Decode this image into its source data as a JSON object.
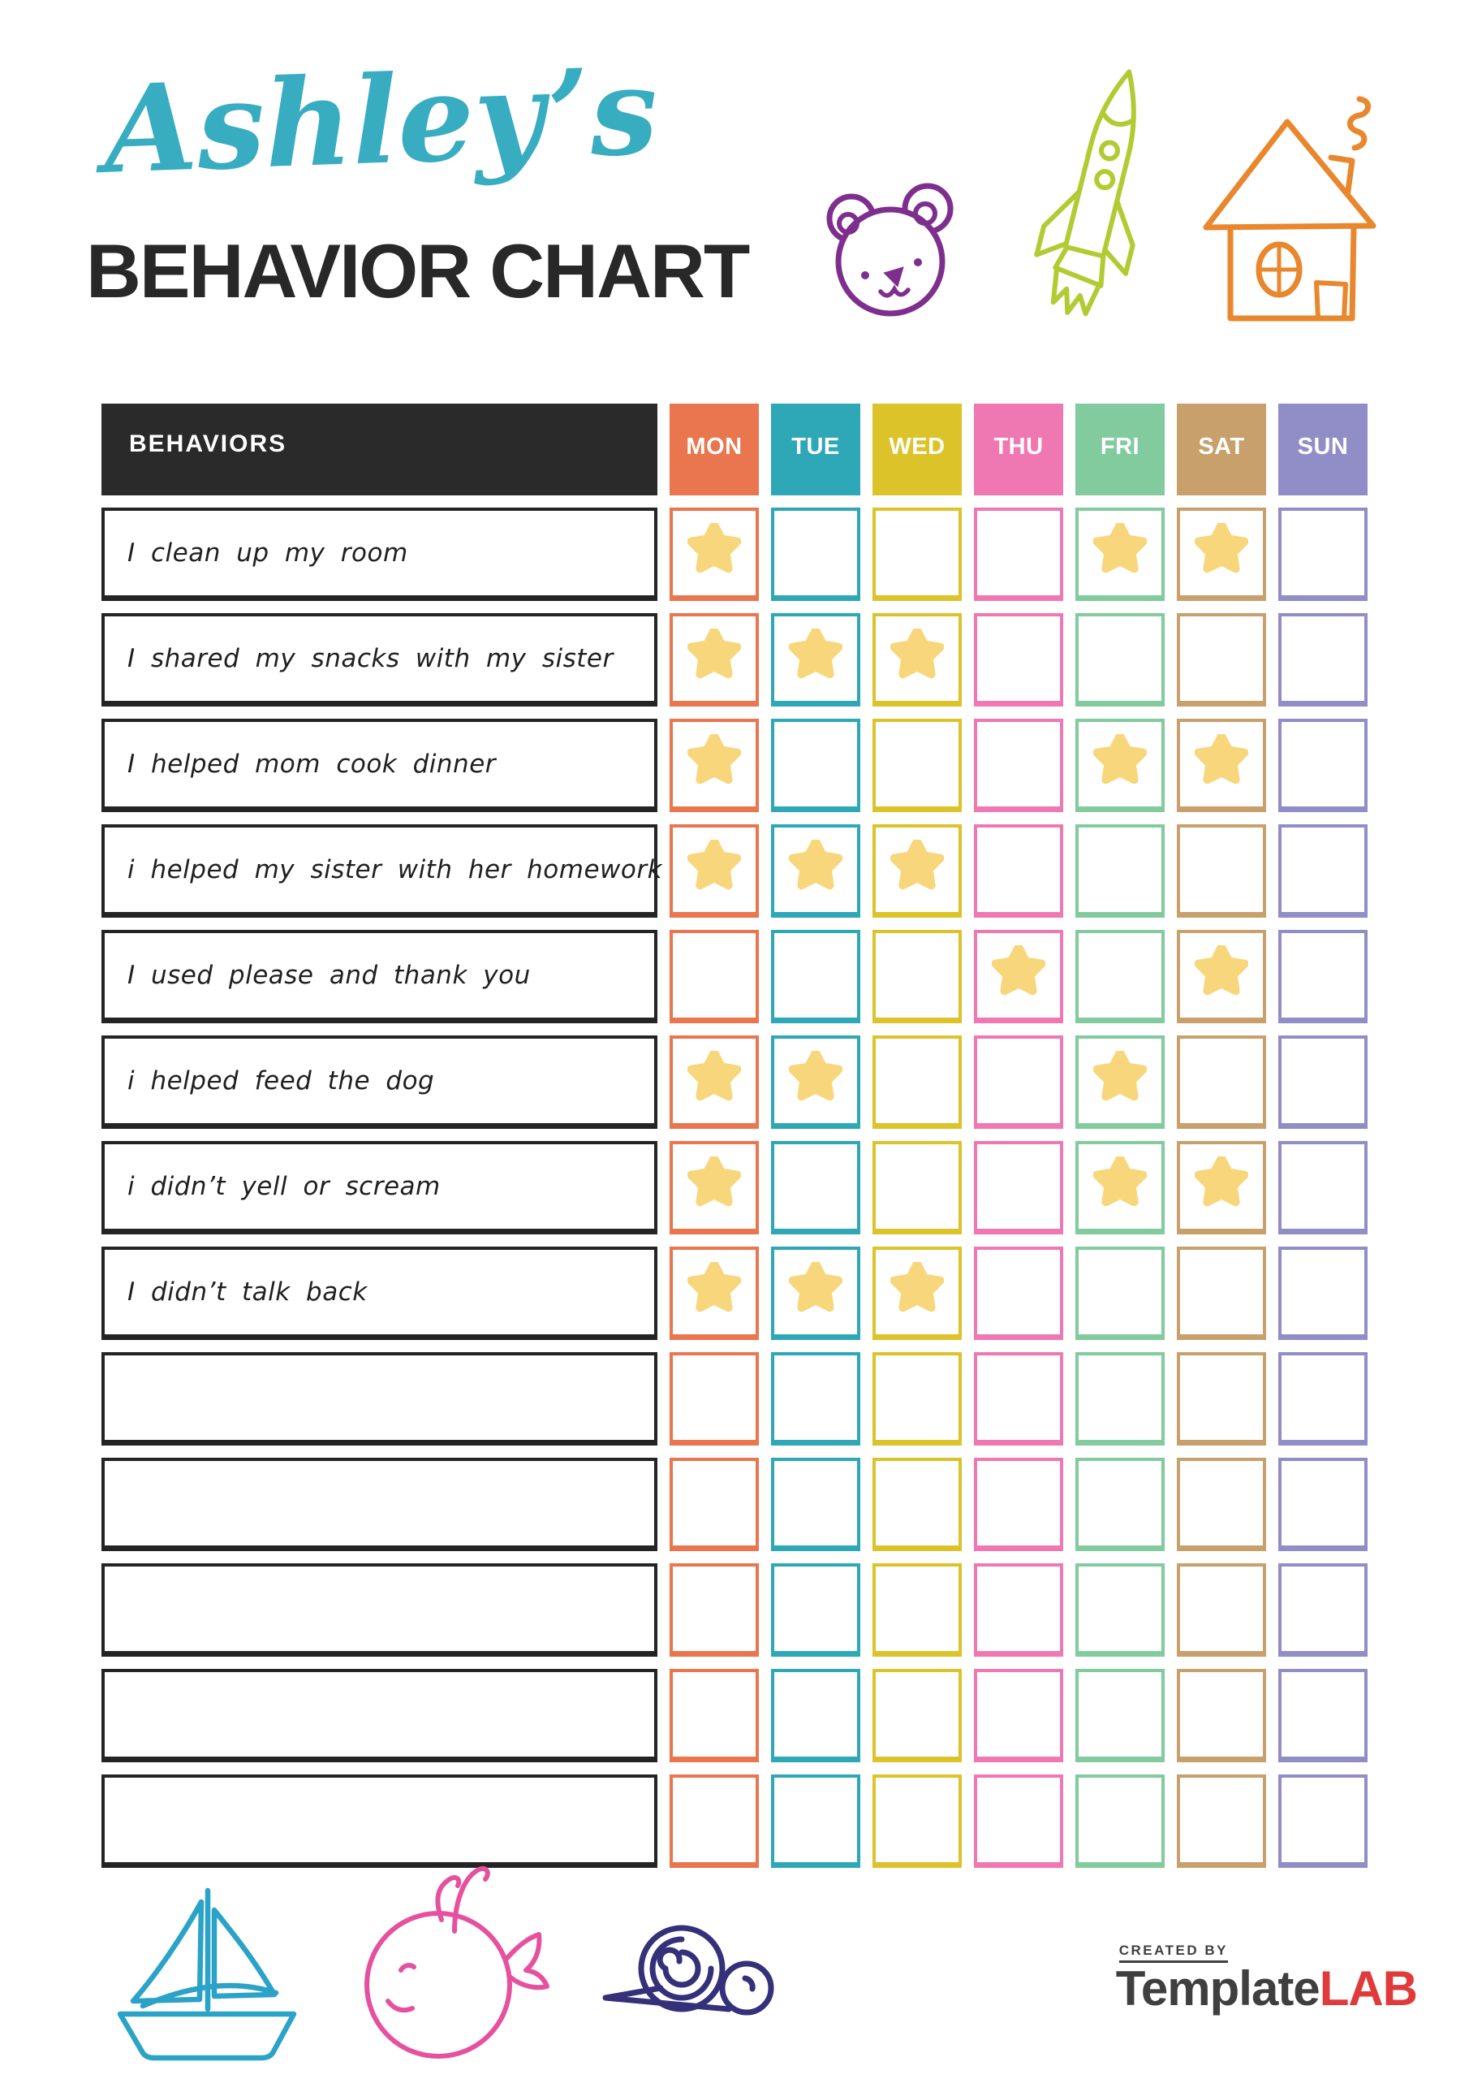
{
  "page": {
    "title_script": "Ashley’s",
    "title_main": "BEHAVIOR CHART",
    "title_color": "#38adc1"
  },
  "doodles": {
    "top": [
      {
        "icon": "bear-icon",
        "color": "#7e2f8e"
      },
      {
        "icon": "rocket-icon",
        "color": "#b2cb32"
      },
      {
        "icon": "house-icon",
        "color": "#e8872e"
      }
    ],
    "bottom": [
      {
        "icon": "sailboat-icon",
        "color": "#2ba2c8"
      },
      {
        "icon": "whale-icon",
        "color": "#e5519f"
      },
      {
        "icon": "snail-icon",
        "color": "#35307a"
      }
    ]
  },
  "table": {
    "behaviors_header": "BEHAVIORS",
    "header_bg": "#2a2a2a",
    "star_icon": "star-icon",
    "star_color": "#f8d67b",
    "days": [
      {
        "label": "MON",
        "color": "#e9764e"
      },
      {
        "label": "TUE",
        "color": "#2ea7b6"
      },
      {
        "label": "WED",
        "color": "#dcc32a"
      },
      {
        "label": "THU",
        "color": "#f078b2"
      },
      {
        "label": "FRI",
        "color": "#82cb9e"
      },
      {
        "label": "SAT",
        "color": "#c8a06c"
      },
      {
        "label": "SUN",
        "color": "#908dc7"
      }
    ],
    "rows": [
      {
        "label": "I clean up my room",
        "stars": [
          "MON",
          "FRI",
          "SAT"
        ]
      },
      {
        "label": "I shared my snacks with my sister",
        "stars": [
          "MON",
          "TUE",
          "WED"
        ]
      },
      {
        "label": "I helped mom cook dinner",
        "stars": [
          "MON",
          "FRI",
          "SAT"
        ]
      },
      {
        "label": "i helped my sister with her homework",
        "stars": [
          "MON",
          "TUE",
          "WED"
        ]
      },
      {
        "label": "I used please and thank you",
        "stars": [
          "THU",
          "SAT"
        ]
      },
      {
        "label": "i helped feed the dog",
        "stars": [
          "MON",
          "TUE",
          "FRI"
        ]
      },
      {
        "label": "i didn’t yell or scream",
        "stars": [
          "MON",
          "FRI",
          "SAT"
        ]
      },
      {
        "label": "I didn’t talk back",
        "stars": [
          "MON",
          "TUE",
          "WED"
        ]
      },
      {
        "label": "",
        "stars": []
      },
      {
        "label": "",
        "stars": []
      },
      {
        "label": "",
        "stars": []
      },
      {
        "label": "",
        "stars": []
      },
      {
        "label": "",
        "stars": []
      }
    ]
  },
  "footer": {
    "logo": {
      "created_by": "CREATED BY",
      "brand_dark": "Template",
      "brand_red": "LAB"
    }
  }
}
